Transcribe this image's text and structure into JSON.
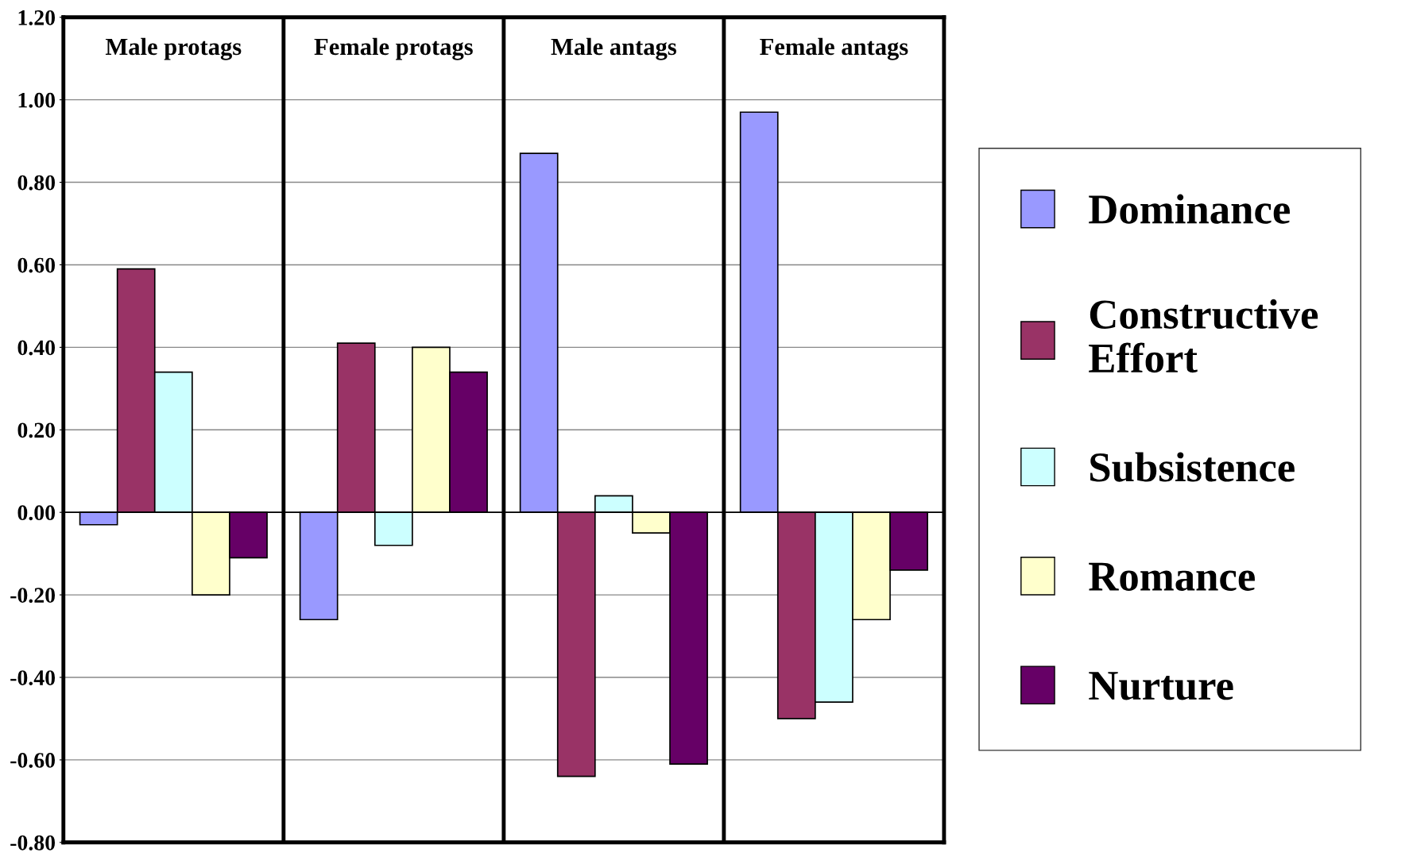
{
  "chart_data": {
    "type": "bar",
    "categories": [
      "Male protags",
      "Female protags",
      "Male antags",
      "Female antags"
    ],
    "series": [
      {
        "name": "Dominance",
        "color": "#9999ff",
        "values": [
          -0.03,
          -0.26,
          0.87,
          0.97
        ]
      },
      {
        "name": "Constructive Effort",
        "color": "#993366",
        "values": [
          0.59,
          0.41,
          -0.64,
          -0.5
        ]
      },
      {
        "name": "Subsistence",
        "color": "#ccffff",
        "values": [
          0.34,
          -0.08,
          0.04,
          -0.46
        ]
      },
      {
        "name": "Romance",
        "color": "#ffffcc",
        "values": [
          -0.2,
          0.4,
          -0.05,
          -0.26
        ]
      },
      {
        "name": "Nurture",
        "color": "#660066",
        "values": [
          -0.11,
          0.34,
          -0.61,
          -0.14
        ]
      }
    ],
    "ylim": [
      -0.8,
      1.2
    ],
    "yticks": [
      {
        "value": -0.8,
        "label": "-0.80"
      },
      {
        "value": -0.6,
        "label": "-0.60"
      },
      {
        "value": -0.4,
        "label": "-0.40"
      },
      {
        "value": -0.2,
        "label": "-0.20"
      },
      {
        "value": 0,
        "label": "0.00"
      },
      {
        "value": 0.2,
        "label": "0.20"
      },
      {
        "value": 0.4,
        "label": "0.40"
      },
      {
        "value": 0.6,
        "label": "0.60"
      },
      {
        "value": 0.8,
        "label": "0.80"
      },
      {
        "value": 1.0,
        "label": "1.00"
      },
      {
        "value": 1.2,
        "label": "1.20"
      }
    ],
    "grid": true,
    "legend": "right"
  }
}
